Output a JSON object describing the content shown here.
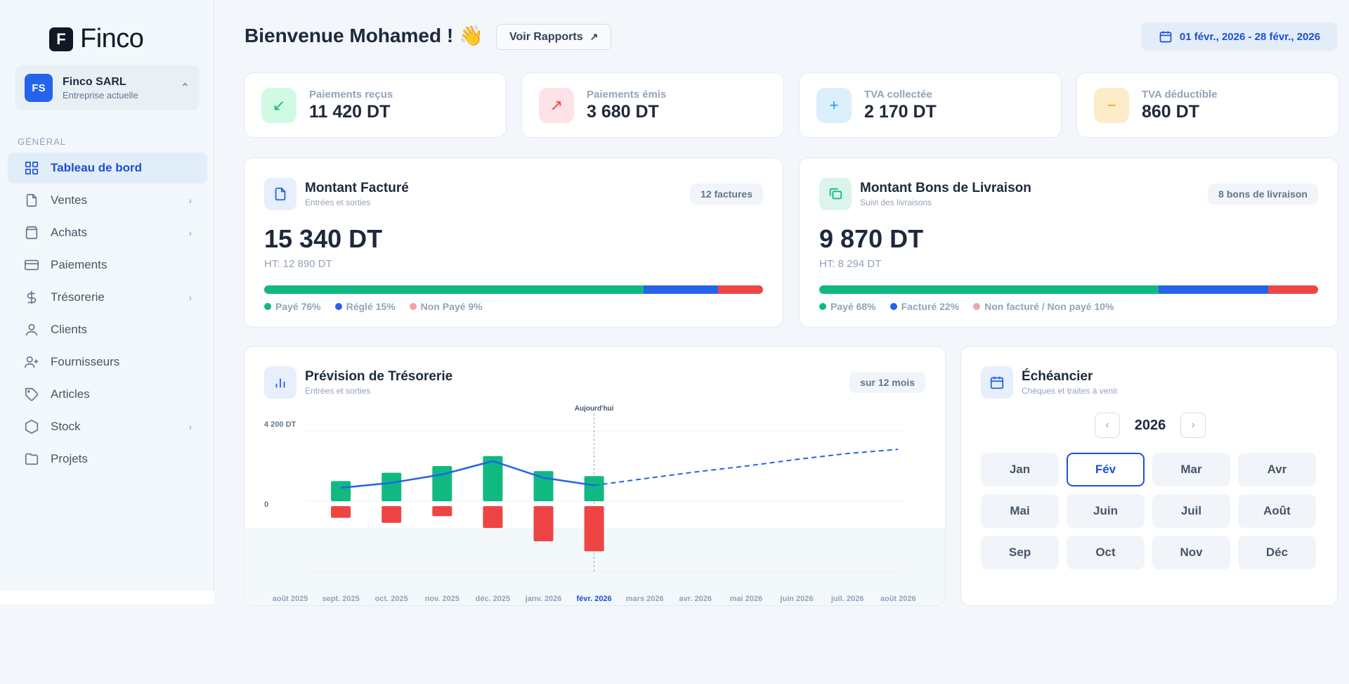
{
  "brand": {
    "name": "Finco",
    "mark": "F"
  },
  "company": {
    "initials": "FS",
    "name": "Finco SARL",
    "subtitle": "Entreprise actuelle"
  },
  "sidebar": {
    "section": "GÉNÉRAL",
    "items": [
      {
        "label": "Tableau de bord",
        "icon": "grid-icon",
        "active": true,
        "chevron": false
      },
      {
        "label": "Ventes",
        "icon": "file-icon",
        "chevron": true
      },
      {
        "label": "Achats",
        "icon": "bag-icon",
        "chevron": true
      },
      {
        "label": "Paiements",
        "icon": "credit-card-icon",
        "chevron": false
      },
      {
        "label": "Trésorerie",
        "icon": "dollar-icon",
        "chevron": true
      },
      {
        "label": "Clients",
        "icon": "user-icon",
        "chevron": false
      },
      {
        "label": "Fournisseurs",
        "icon": "user-plus-icon",
        "chevron": false
      },
      {
        "label": "Articles",
        "icon": "tag-icon",
        "chevron": false
      },
      {
        "label": "Stock",
        "icon": "box-icon",
        "chevron": true
      },
      {
        "label": "Projets",
        "icon": "folder-icon",
        "chevron": false
      }
    ]
  },
  "header": {
    "greeting": "Bienvenue Mohamed ! 👋",
    "report_button": "Voir Rapports",
    "date_range": "01 févr., 2026 - 28 févr., 2026"
  },
  "stats": [
    {
      "label": "Paiements reçus",
      "value": "11 420 DT",
      "color": "#10b981",
      "bg": "#d1fae5",
      "icon": "arrow-down-left-icon"
    },
    {
      "label": "Paiements émis",
      "value": "3 680 DT",
      "color": "#ef4444",
      "bg": "#fde2e7",
      "icon": "arrow-up-right-icon"
    },
    {
      "label": "TVA collectée",
      "value": "2 170 DT",
      "color": "#0ea5e9",
      "bg": "#dbeefb",
      "icon": "plus-icon"
    },
    {
      "label": "TVA déductible",
      "value": "860 DT",
      "color": "#f59e0b",
      "bg": "#fdecc8",
      "icon": "minus-icon"
    }
  ],
  "invoiced": {
    "title": "Montant Facturé",
    "subtitle": "Entrées et sorties",
    "badge": "12 factures",
    "value": "15 340 DT",
    "ht": "HT: 12 890 DT",
    "segments": [
      {
        "label": "Payé 76%",
        "percent": 76,
        "color": "#10b981"
      },
      {
        "label": "Réglé 15%",
        "percent": 15,
        "color": "#2563eb"
      },
      {
        "label": "Non Payé 9%",
        "percent": 9,
        "color": "#ef4444",
        "dot": "#f5a3a3"
      }
    ]
  },
  "delivery": {
    "title": "Montant Bons de Livraison",
    "subtitle": "Suivi des livraisons",
    "badge": "8 bons de livraison",
    "value": "9 870 DT",
    "ht": "HT: 8 294 DT",
    "segments": [
      {
        "label": "Payé 68%",
        "percent": 68,
        "color": "#10b981"
      },
      {
        "label": "Facturé 22%",
        "percent": 22,
        "color": "#2563eb"
      },
      {
        "label": "Non facturé / Non payé 10%",
        "percent": 10,
        "color": "#ef4444",
        "dot": "#f5a3a3"
      }
    ]
  },
  "forecast": {
    "title": "Prévision de Trésorerie",
    "subtitle": "Entrées et sorties",
    "badge": "sur 12 mois"
  },
  "chart_data": {
    "type": "bar",
    "categories": [
      "août 2025",
      "sept. 2025",
      "oct. 2025",
      "nov. 2025",
      "déc. 2025",
      "janv. 2026",
      "févr. 2026",
      "mars 2026",
      "avr. 2026",
      "mai 2026",
      "juin 2026",
      "juil. 2026",
      "août 2026"
    ],
    "today_label": "Aujourd'hui",
    "today_index": 6,
    "y_ticks": [
      {
        "value": 4200,
        "label": "4 200 DT"
      },
      {
        "value": 0,
        "label": "0"
      }
    ],
    "ylim": [
      -3500,
      4200
    ],
    "series": [
      {
        "kind": "bar",
        "color": "#10b981",
        "values": [
          null,
          1200,
          1700,
          2100,
          2700,
          1800,
          1500,
          null,
          null,
          null,
          null,
          null,
          null
        ]
      },
      {
        "kind": "bar",
        "color": "#ef4444",
        "values": [
          null,
          -700,
          -1000,
          -600,
          -1300,
          -2100,
          -2700,
          null,
          null,
          null,
          null,
          null,
          null
        ]
      },
      {
        "kind": "line",
        "color": "#2563eb",
        "values": [
          null,
          800,
          1100,
          1600,
          2400,
          1400,
          950,
          null,
          null,
          null,
          null,
          null,
          null
        ]
      },
      {
        "kind": "line-dashed",
        "color": "#2563eb",
        "values": [
          null,
          null,
          null,
          null,
          null,
          null,
          950,
          1350,
          1750,
          2100,
          2500,
          2850,
          3100
        ]
      }
    ]
  },
  "schedule": {
    "title": "Échéancier",
    "subtitle": "Chèques et traites à venir",
    "year": "2026",
    "prev": "‹",
    "next": "›",
    "selected_month": "Fév",
    "months": [
      "Jan",
      "Fév",
      "Mar",
      "Avr",
      "Mai",
      "Juin",
      "Juil",
      "Août",
      "Sep",
      "Oct",
      "Nov",
      "Déc"
    ]
  }
}
